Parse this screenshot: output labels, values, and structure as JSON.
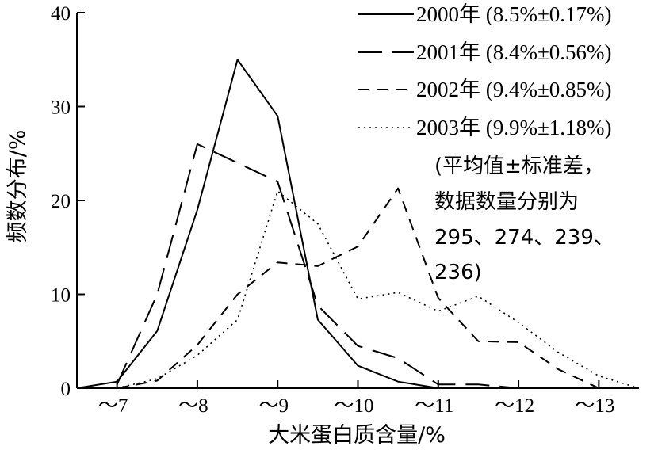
{
  "chart_data": {
    "type": "line",
    "xlabel": "大米蛋白质含量/%",
    "ylabel": "频数分布/%",
    "x_ticks": [
      "～7",
      "～8",
      "～9",
      "～10",
      "～11",
      "～12",
      "～13"
    ],
    "x_tick_values": [
      7,
      8,
      9,
      10,
      11,
      12,
      13
    ],
    "xlim": [
      6.5,
      13.5
    ],
    "ylim": [
      0,
      40
    ],
    "y_ticks": [
      0,
      10,
      20,
      30,
      40
    ],
    "grid": false,
    "legend_position": "top-right",
    "series": [
      {
        "name": "2000年 (8.5%±0.17%)",
        "dash": "solid",
        "points": [
          [
            6.5,
            0
          ],
          [
            7,
            0.7
          ],
          [
            7.5,
            6.1
          ],
          [
            8,
            19
          ],
          [
            8.5,
            35
          ],
          [
            9,
            29
          ],
          [
            9.5,
            7.3
          ],
          [
            10,
            2.4
          ],
          [
            10.5,
            0.7
          ],
          [
            11,
            0
          ]
        ]
      },
      {
        "name": "2001年 (8.4%±0.56%)",
        "dash": "long-dash",
        "points": [
          [
            7,
            0.4
          ],
          [
            7.5,
            10
          ],
          [
            8,
            26
          ],
          [
            8.5,
            24
          ],
          [
            9,
            22
          ],
          [
            9.5,
            8.8
          ],
          [
            10,
            4.5
          ],
          [
            10.5,
            3.2
          ],
          [
            11,
            0.4
          ],
          [
            11.5,
            0.4
          ],
          [
            12,
            0
          ]
        ]
      },
      {
        "name": "2002年 (9.4%±0.85%)",
        "dash": "short-dash",
        "points": [
          [
            7,
            0
          ],
          [
            7.5,
            0.8
          ],
          [
            8,
            4.6
          ],
          [
            8.5,
            10
          ],
          [
            9,
            13.4
          ],
          [
            9.5,
            13
          ],
          [
            10,
            15.1
          ],
          [
            10.5,
            21.3
          ],
          [
            11,
            9.6
          ],
          [
            11.5,
            5
          ],
          [
            12,
            4.9
          ],
          [
            12.5,
            2
          ],
          [
            13,
            0
          ]
        ]
      },
      {
        "name": "2003年 (9.9%±1.18%)",
        "dash": "dotted",
        "points": [
          [
            7,
            0
          ],
          [
            7.5,
            1
          ],
          [
            8,
            3.5
          ],
          [
            8.5,
            7.3
          ],
          [
            9,
            21
          ],
          [
            9.5,
            17.5
          ],
          [
            10,
            9.5
          ],
          [
            10.5,
            10.2
          ],
          [
            11,
            8.2
          ],
          [
            11.5,
            9.8
          ],
          [
            12,
            7
          ],
          [
            12.5,
            3.8
          ],
          [
            13,
            1.3
          ],
          [
            13.5,
            0
          ]
        ]
      }
    ],
    "annotation": [
      "(平均值±标准差，",
      "数据数量分别为",
      "295、274、239、",
      "236)"
    ]
  }
}
